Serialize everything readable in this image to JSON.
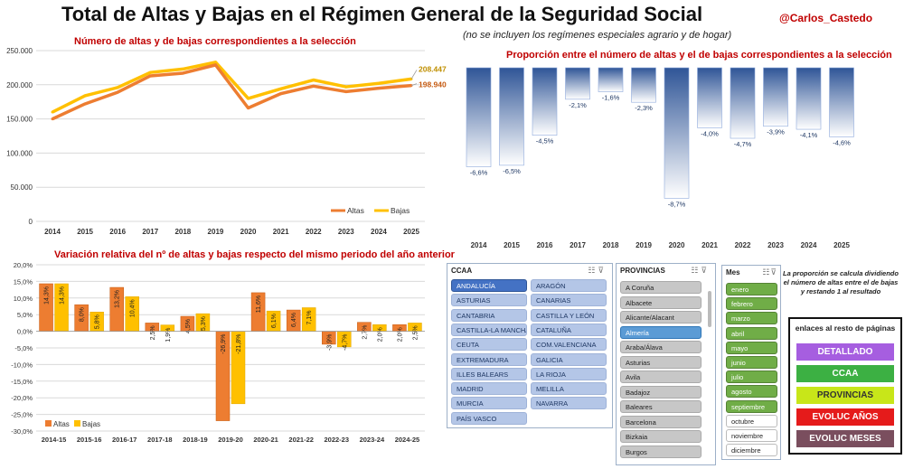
{
  "header": {
    "title": "Total de Altas y Bajas en el Régimen General de la Seguridad Social",
    "author": "@Carlos_Castedo",
    "subtitle": "(no se incluyen los regímenes especiales agrario y de hogar)"
  },
  "chart_data": [
    {
      "type": "line",
      "title": "Número de altas y de bajas correspondientes a la selección",
      "categories": [
        "2014",
        "2015",
        "2016",
        "2017",
        "2018",
        "2019",
        "2020",
        "2021",
        "2022",
        "2023",
        "2024",
        "2025"
      ],
      "series": [
        {
          "name": "Altas",
          "color": "#ed7d31",
          "values": [
            150000,
            172000,
            189000,
            213000,
            217000,
            229000,
            166000,
            187000,
            198000,
            190000,
            195000,
            198940
          ]
        },
        {
          "name": "Bajas",
          "color": "#ffc000",
          "values": [
            160000,
            184000,
            196000,
            218000,
            223000,
            233000,
            180000,
            194000,
            207000,
            197000,
            202000,
            208447
          ]
        }
      ],
      "ylim": [
        0,
        250000
      ],
      "yticks": [
        "0",
        "50.000",
        "100.000",
        "150.000",
        "200.000",
        "250.000"
      ],
      "end_labels": [
        "208.447",
        "198.940"
      ],
      "legend": "bottom-right"
    },
    {
      "type": "bar",
      "title": "Proporción entre el número de altas y el de bajas correspondientes a la selección",
      "categories": [
        "2014",
        "2015",
        "2016",
        "2017",
        "2018",
        "2019",
        "2020",
        "2021",
        "2022",
        "2023",
        "2024",
        "2025"
      ],
      "values": [
        -6.6,
        -6.5,
        -4.5,
        -2.1,
        -1.6,
        -2.3,
        -8.7,
        -4.0,
        -4.7,
        -3.9,
        -4.1,
        -4.6
      ],
      "labels": [
        "-6,6%",
        "-6,5%",
        "-4,5%",
        "-2,1%",
        "-1,6%",
        "-2,3%",
        "-8,7%",
        "-4,0%",
        "-4,7%",
        "-3,9%",
        "-4,1%",
        "-4,6%"
      ],
      "ylim": [
        -10,
        0
      ],
      "color": "#2f5597"
    },
    {
      "type": "bar",
      "title": "Variación relativa del nº de altas y bajas respecto del mismo periodo del año anterior",
      "categories": [
        "2014-15",
        "2015-16",
        "2016-17",
        "2017-18",
        "2018-19",
        "2019-20",
        "2020-21",
        "2021-22",
        "2022-23",
        "2023-24",
        "2024-25"
      ],
      "series": [
        {
          "name": "Altas",
          "color": "#ed7d31",
          "values": [
            14.3,
            8.0,
            13.2,
            2.5,
            4.5,
            -26.9,
            11.6,
            6.4,
            -3.9,
            2.7,
            2.0
          ],
          "labels": [
            "14,3%",
            "8,0%",
            "13,2%",
            "2,5%",
            "4,5%",
            "-26,9%",
            "11,6%",
            "6,4%",
            "-3,9%",
            "2,7%",
            "2,0%"
          ]
        },
        {
          "name": "Bajas",
          "color": "#ffc000",
          "values": [
            14.3,
            5.8,
            10.4,
            1.9,
            5.3,
            -21.8,
            6.1,
            7.1,
            -4.7,
            2.0,
            2.5
          ],
          "labels": [
            "14,3%",
            "5,8%",
            "10,4%",
            "1,9%",
            "5,3%",
            "-21,8%",
            "6,1%",
            "7,1%",
            "-4,7%",
            "2,0%",
            "2,5%"
          ]
        }
      ],
      "ylim": [
        -30,
        20
      ],
      "yticks": [
        "-30,0%",
        "-25,0%",
        "-20,0%",
        "-15,0%",
        "-10,0%",
        "-5,0%",
        "0,0%",
        "5,0%",
        "10,0%",
        "15,0%",
        "20,0%"
      ],
      "legend": "bottom-left"
    }
  ],
  "slicers": {
    "ccaa": {
      "title": "CCAA",
      "selected": "ANDALUCÍA",
      "items": [
        "ANDALUCÍA",
        "ARAGÓN",
        "ASTURIAS",
        "CANARIAS",
        "CANTABRIA",
        "CASTILLA Y LEÓN",
        "CASTILLA-LA MANCHA",
        "CATALUÑA",
        "CEUTA",
        "COM.VALENCIANA",
        "EXTREMADURA",
        "GALICIA",
        "ILLES BALEARS",
        "LA RIOJA",
        "MADRID",
        "MELILLA",
        "MURCIA",
        "NAVARRA",
        "PAÍS VASCO"
      ]
    },
    "provincias": {
      "title": "PROVINCIAS",
      "selected": "Almería",
      "items": [
        "A Coruña",
        "Albacete",
        "Alicante/Alacant",
        "Almería",
        "Araba/Álava",
        "Asturias",
        "Avila",
        "Badajoz",
        "Baleares",
        "Barcelona",
        "Bizkaia",
        "Burgos"
      ]
    },
    "mes": {
      "title": "Mes",
      "items": [
        "enero",
        "febrero",
        "marzo",
        "abril",
        "mayo",
        "junio",
        "julio",
        "agosto",
        "septiembre",
        "octubre",
        "noviembre",
        "diciembre"
      ],
      "selected": [
        "enero",
        "febrero",
        "marzo",
        "abril",
        "mayo",
        "junio",
        "julio",
        "agosto",
        "septiembre"
      ]
    }
  },
  "note": "La proporción se calcula dividiendo el número de altas entre el de bajas y restando 1 al resultado",
  "links": {
    "title": "enlaces al resto de páginas",
    "buttons": [
      {
        "label": "DETALLADO",
        "color": "#a65ee0"
      },
      {
        "label": "CCAA",
        "color": "#3cb043"
      },
      {
        "label": "PROVINCIAS",
        "color": "#c8e619"
      },
      {
        "label": "EVOLUC AÑOS",
        "color": "#e51b1b"
      },
      {
        "label": "EVOLUC MESES",
        "color": "#7a4e5e"
      }
    ]
  }
}
